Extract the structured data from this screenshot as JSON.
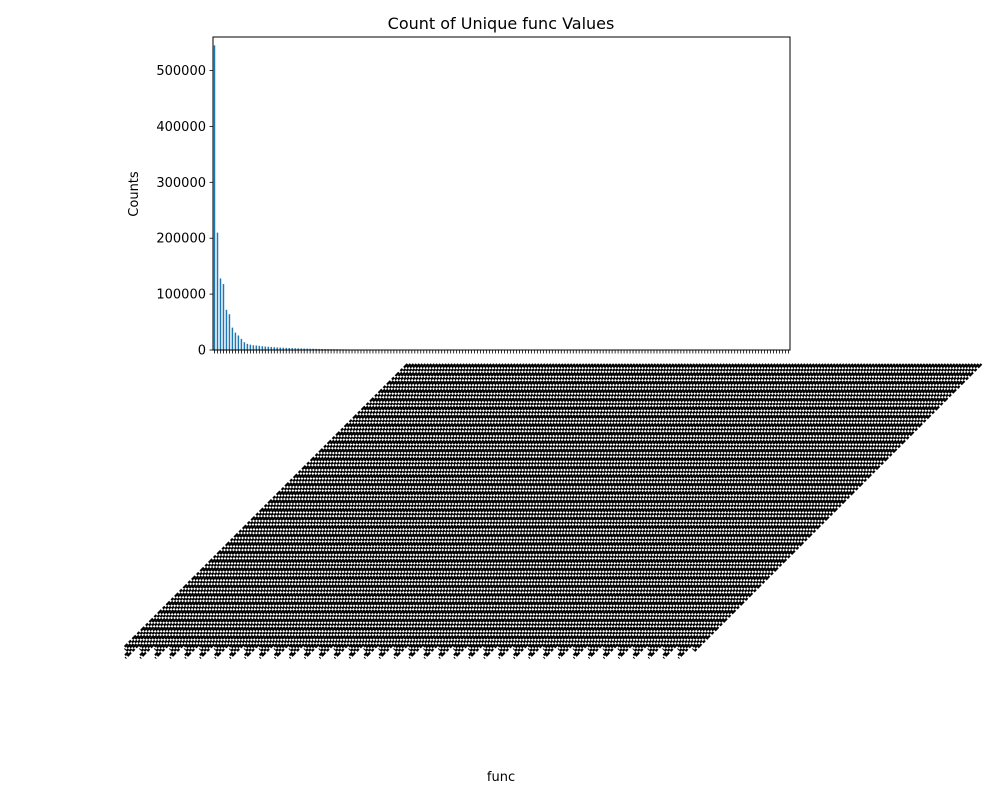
{
  "chart_data": {
    "type": "bar",
    "title": "Count of Unique func Values",
    "xlabel": "func",
    "ylabel": "Counts",
    "ylim": [
      0,
      560000
    ],
    "y_ticks": [
      0,
      100000,
      200000,
      300000,
      400000,
      500000
    ],
    "grid": false,
    "legend": "none",
    "category_count": 193,
    "tick_labels_rotated_deg": 45,
    "tick_labels_legible": false,
    "bar_color": "#1f77b4",
    "series": [
      {
        "values": [
          545000,
          210000,
          128000,
          118000,
          72000,
          64000,
          40000,
          31000,
          26000,
          20000,
          14000,
          11000,
          9500,
          8500,
          8000,
          7500,
          6800,
          6200,
          5800,
          5400,
          5000,
          4600,
          4300,
          4000,
          3800,
          3600,
          3400,
          3200,
          3000,
          2850,
          2700,
          2550,
          2400,
          2250,
          2100,
          1950,
          1800,
          1700,
          1600,
          1500,
          1400,
          1300,
          1200,
          1100,
          1000,
          950,
          900,
          850,
          800,
          750,
          700,
          650,
          600,
          560,
          520,
          490,
          460,
          430,
          400,
          380,
          360,
          340,
          320,
          300,
          280,
          260,
          240,
          225,
          210,
          195,
          180,
          170,
          160,
          150,
          140,
          130,
          120,
          110,
          100,
          95,
          90,
          85,
          80,
          75,
          70,
          65,
          60,
          56,
          52,
          48,
          45,
          42,
          40,
          38,
          36,
          34,
          32,
          30,
          28,
          26,
          24,
          22,
          20,
          19,
          18,
          17,
          16,
          15,
          14,
          13,
          12,
          11,
          10,
          10,
          9,
          9,
          8,
          8,
          7,
          7,
          6,
          6,
          6,
          5,
          5,
          5,
          4,
          4,
          4,
          4,
          3,
          3,
          3,
          3,
          3,
          2,
          2,
          2,
          2,
          2,
          2,
          2,
          2,
          1,
          1,
          1,
          1,
          1,
          1,
          1,
          1,
          1,
          1,
          1,
          1,
          1,
          1,
          1,
          1,
          1,
          1,
          1,
          1,
          1,
          1,
          1,
          1,
          1,
          1,
          1,
          1,
          1,
          1,
          1,
          1,
          1,
          1,
          1,
          1,
          1,
          1,
          1,
          1,
          1,
          1,
          1,
          1,
          1,
          1,
          1,
          1,
          1,
          1
        ]
      }
    ]
  }
}
